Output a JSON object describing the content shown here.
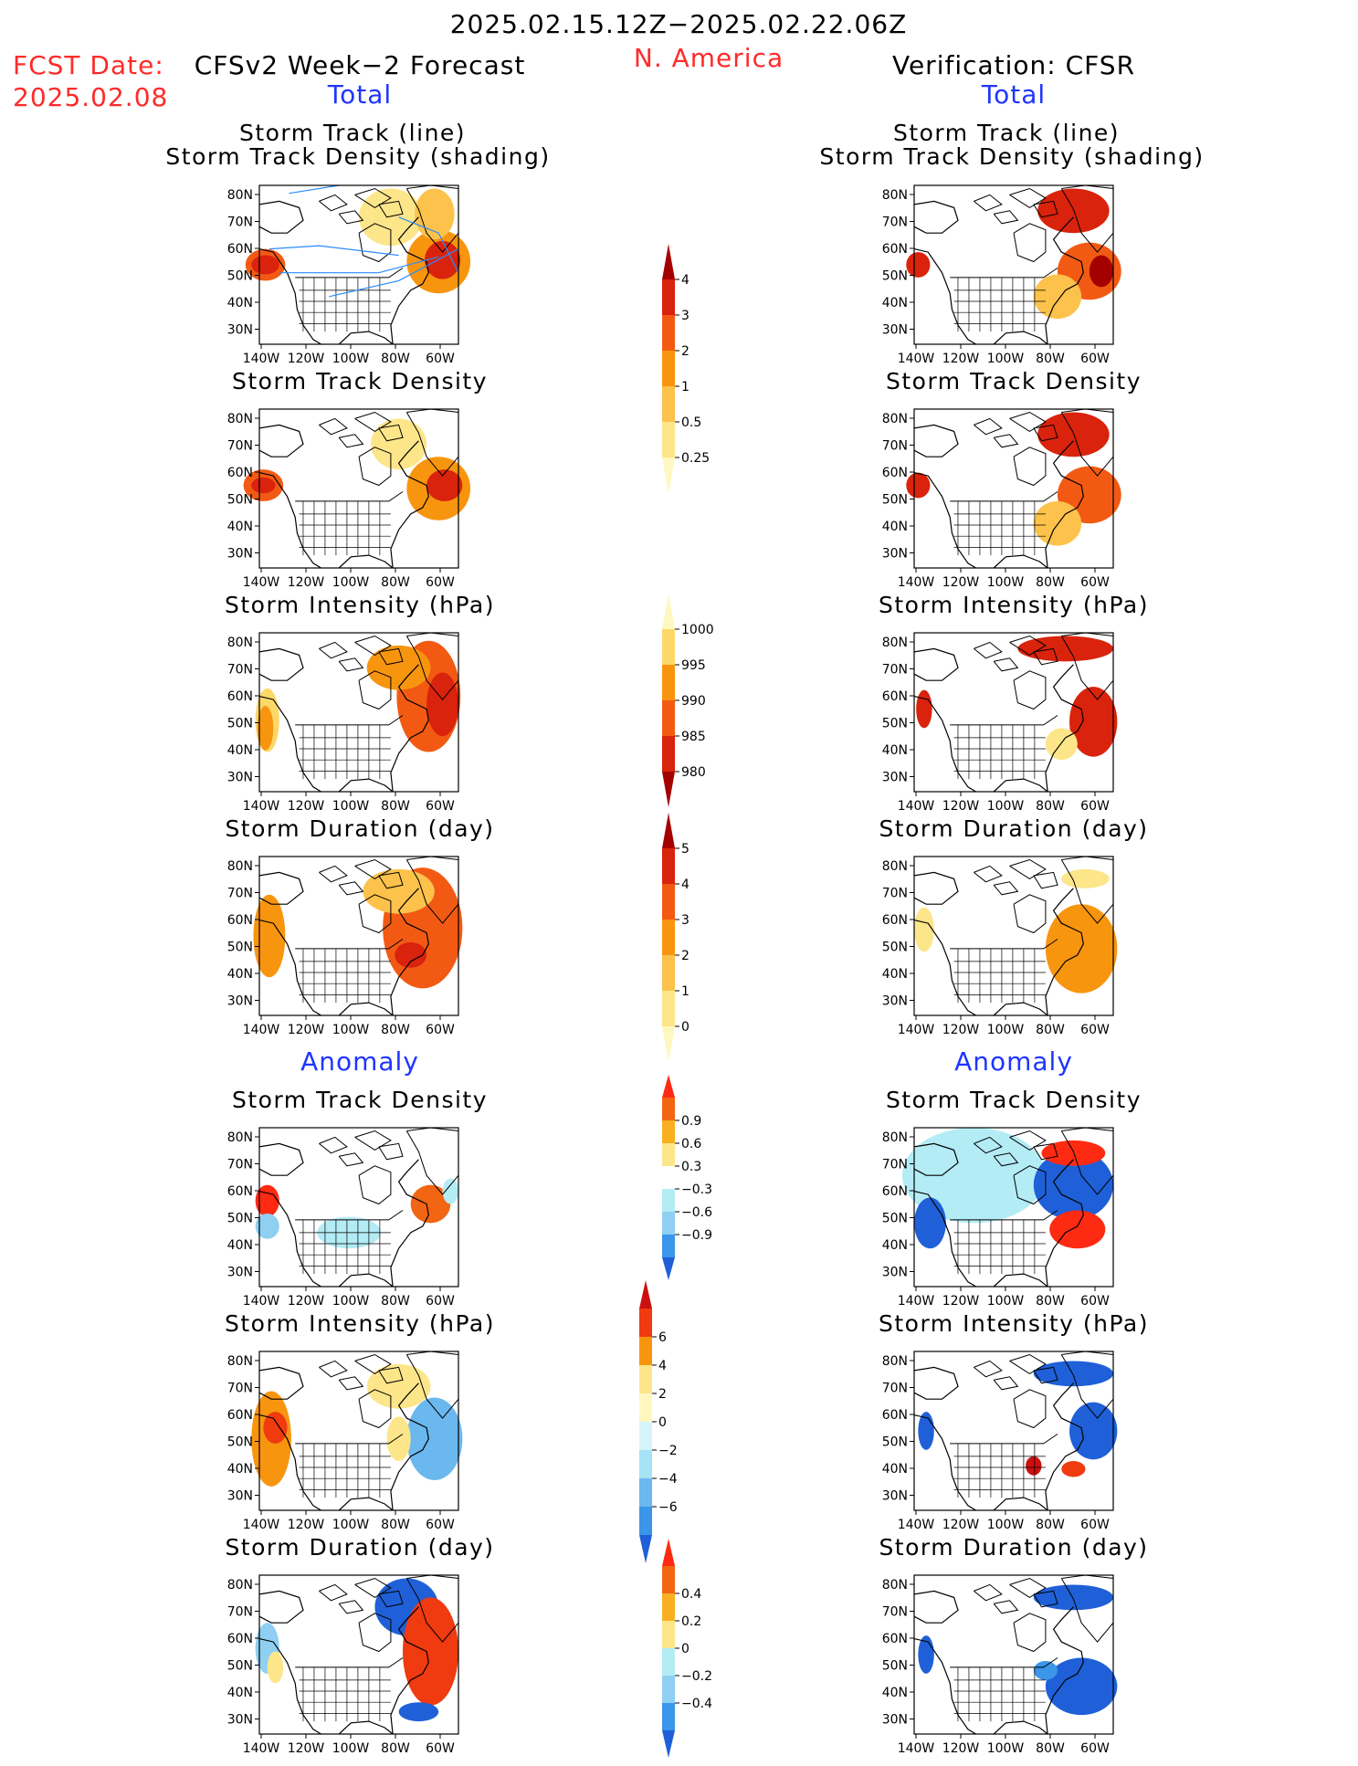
{
  "header": {
    "date_range": "2025.02.15.12Z−2025.02.22.06Z",
    "fcst_label": "FCST Date:",
    "fcst_date": "2025.02.08",
    "left_title": "CFSv2 Week−2 Forecast",
    "region": "N. America",
    "right_title": "Verification: CFSR",
    "left_section_total": "Total",
    "right_section_total": "Total",
    "left_section_anomaly": "Anomaly",
    "right_section_anomaly": "Anomaly"
  },
  "panels": {
    "titles": {
      "track_line": "Storm Track (line)",
      "track_shading": "Storm Track Density (shading)",
      "density": "Storm Track Density",
      "intensity": "Storm Intensity (hPa)",
      "duration": "Storm Duration (day)"
    },
    "lat_labels": [
      "80N",
      "70N",
      "60N",
      "50N",
      "40N",
      "30N"
    ],
    "lon_labels": [
      "140W",
      "120W",
      "100W",
      "80W",
      "60W"
    ]
  },
  "colorbars": {
    "density_total": {
      "ticks": [
        "4",
        "3",
        "2",
        "1",
        "0.5",
        "0.25"
      ],
      "colors": [
        "#a50000",
        "#d9230c",
        "#f25a13",
        "#f8950f",
        "#fcc24b",
        "#fde68a",
        "#fff7c0"
      ]
    },
    "intensity_total": {
      "ticks": [
        "1000",
        "995",
        "990",
        "985",
        "980"
      ],
      "colors": [
        "#fff7c0",
        "#fcd86a",
        "#f8950f",
        "#f25a13",
        "#d9230c",
        "#a50000"
      ]
    },
    "duration_total": {
      "ticks": [
        "5",
        "4",
        "3",
        "2",
        "1",
        "0"
      ],
      "colors": [
        "#a50000",
        "#d9230c",
        "#f25a13",
        "#f8950f",
        "#fcc24b",
        "#fde68a",
        "#fff7c0"
      ]
    },
    "density_anom": {
      "ticks": [
        "0.9",
        "0.6",
        "0.3",
        "−0.3",
        "−0.6",
        "−0.9"
      ],
      "colors": [
        "#ff2a12",
        "#f26513",
        "#f8b020",
        "#fde68a",
        "#ffffff",
        "#b4ecf5",
        "#8fd0f2",
        "#3b95e8",
        "#1f60d8"
      ]
    },
    "intensity_anom": {
      "ticks": [
        "6",
        "4",
        "2",
        "0",
        "−2",
        "−4",
        "−6"
      ],
      "colors": [
        "#cc1010",
        "#f03a10",
        "#f8950f",
        "#fde68a",
        "#fff7c0",
        "#d6f5fb",
        "#a5e3f5",
        "#6bb8ef",
        "#3b95e8",
        "#1f60d8"
      ]
    },
    "duration_anom": {
      "ticks": [
        "0.4",
        "0.2",
        "0",
        "−0.2",
        "−0.4"
      ],
      "colors": [
        "#ff2a12",
        "#f26513",
        "#f8b020",
        "#fde68a",
        "#b4ecf5",
        "#8fd0f2",
        "#3b95e8",
        "#1f60d8"
      ]
    }
  }
}
